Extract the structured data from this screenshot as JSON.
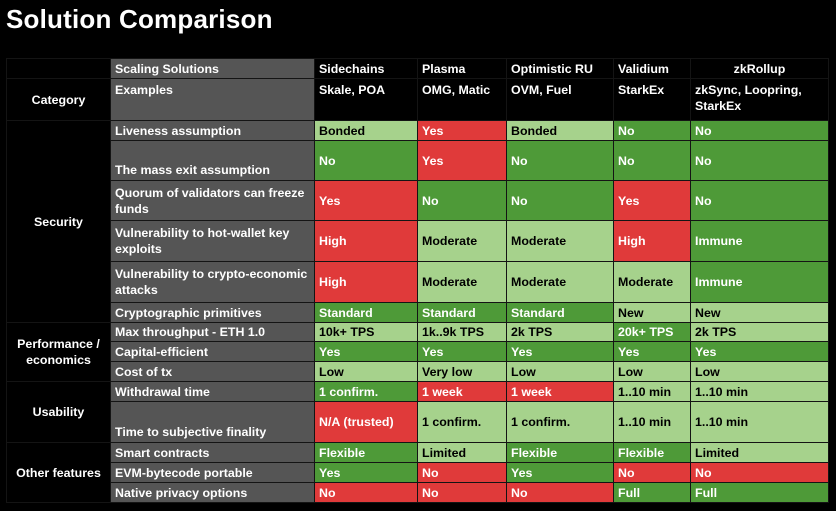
{
  "title": "Solution Comparison",
  "header": {
    "row_label": "Scaling Solutions",
    "solutions": [
      "Sidechains",
      "Plasma",
      "Optimistic RU",
      "Validium",
      "zkRollup"
    ]
  },
  "category": {
    "group_label": "Category",
    "row_label": "Examples",
    "values": [
      "Skale, POA",
      "OMG, Matic",
      "OVM, Fuel",
      "StarkEx",
      "zkSync, Loopring, StarkEx"
    ]
  },
  "groups": {
    "security": "Security",
    "performance": "Performance / economics",
    "usability": "Usability",
    "other": "Other features"
  },
  "rows": [
    {
      "label": "Liveness assumption",
      "values": [
        "Bonded",
        "Yes",
        "Bonded",
        "No",
        "No"
      ]
    },
    {
      "label": "The mass exit assumption",
      "values": [
        "No",
        "Yes",
        "No",
        "No",
        "No"
      ]
    },
    {
      "label": "Quorum of validators can freeze funds",
      "values": [
        "Yes",
        "No",
        "No",
        "Yes",
        "No"
      ]
    },
    {
      "label": "Vulnerability to hot-wallet key exploits",
      "values": [
        "High",
        "Moderate",
        "Moderate",
        "High",
        "Immune"
      ]
    },
    {
      "label": "Vulnerability to crypto-economic attacks",
      "values": [
        "High",
        "Moderate",
        "Moderate",
        "Moderate",
        "Immune"
      ]
    },
    {
      "label": "Cryptographic primitives",
      "values": [
        "Standard",
        "Standard",
        "Standard",
        "New",
        "New"
      ]
    },
    {
      "label": "Max throughput - ETH 1.0",
      "values": [
        "10k+ TPS",
        "1k..9k TPS",
        "2k TPS",
        "20k+ TPS",
        "2k TPS"
      ]
    },
    {
      "label": "Capital-efficient",
      "values": [
        "Yes",
        "Yes",
        "Yes",
        "Yes",
        "Yes"
      ]
    },
    {
      "label": "Cost of tx",
      "values": [
        "Low",
        "Very low",
        "Low",
        "Low",
        "Low"
      ]
    },
    {
      "label": "Withdrawal time",
      "values": [
        "1 confirm.",
        "1 week",
        "1 week",
        "1..10 min",
        "1..10 min"
      ]
    },
    {
      "label": "Time to subjective finality",
      "values": [
        "N/A (trusted)",
        "1 confirm.",
        "1 confirm.",
        "1..10 min",
        "1..10 min"
      ]
    },
    {
      "label": "Smart contracts",
      "values": [
        "Flexible",
        "Limited",
        "Flexible",
        "Flexible",
        "Limited"
      ]
    },
    {
      "label": "EVM-bytecode portable",
      "values": [
        "Yes",
        "No",
        "Yes",
        "No",
        "No"
      ]
    },
    {
      "label": "Native privacy options",
      "values": [
        "No",
        "No",
        "No",
        "Full",
        "Full"
      ]
    }
  ],
  "colors": {
    "green": "#4e9a38",
    "light_green": "#a6d28c",
    "red": "#e03a3a",
    "light_red": "#e2868a",
    "light_gray": "#e7e7e7",
    "optimistic_header": "#e02424",
    "validium_header": "#8a3fd6",
    "zkrollup_header": "#8a3fd6"
  }
}
